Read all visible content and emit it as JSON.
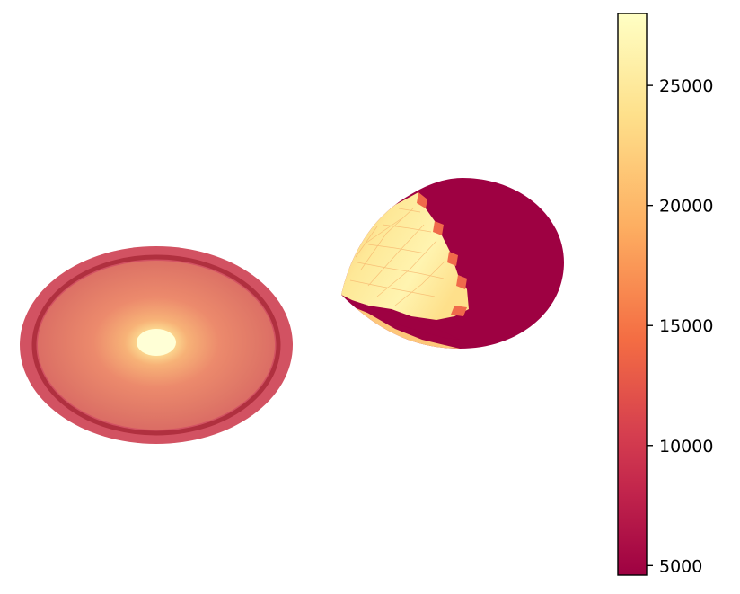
{
  "chart_data": {
    "type": "heatmap",
    "title": "",
    "panels": [
      {
        "name": "",
        "kind": "surface-disk-view"
      },
      {
        "name": "",
        "kind": "partial-sphere-view"
      }
    ],
    "colorbar": {
      "colormap": "Spectral",
      "range": [
        4600,
        28000
      ],
      "ticks": [
        5000,
        10000,
        15000,
        20000,
        25000
      ],
      "tick_labels": [
        "5000",
        "10000",
        "15000",
        "20000",
        "25000"
      ],
      "colors": {
        "low": "#9e0142",
        "mid_low": "#d53e4f",
        "mid": "#f46d43",
        "mid_high": "#fdae61",
        "high": "#fee08b",
        "top": "#ffffbf"
      }
    }
  }
}
